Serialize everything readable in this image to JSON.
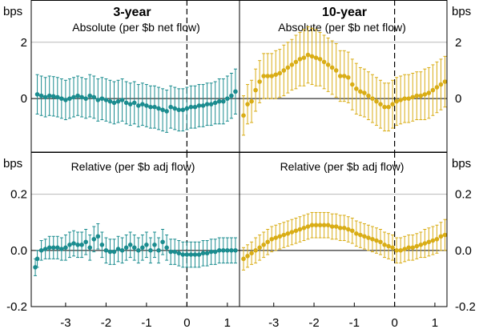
{
  "colors": {
    "teal": "#1a8c8f",
    "gold": "#d9ad16",
    "grid": "#b8b8b8",
    "axis": "#000000"
  },
  "chart_data": [
    {
      "type": "scatter",
      "panel": "top-left",
      "title": "3-year",
      "subtitle": "Absolute (per $b net flow)",
      "ylabel": "bps",
      "ylim": [
        -1.9,
        3.5
      ],
      "yticks": [
        "2",
        "0"
      ],
      "xlim": [
        -3.85,
        1.3
      ],
      "grid": "horizontal",
      "event_line": 0,
      "series": [
        {
          "color": "teal",
          "x": [
            -3.7,
            -3.6,
            -3.5,
            -3.4,
            -3.3,
            -3.2,
            -3.1,
            -3.0,
            -2.9,
            -2.8,
            -2.7,
            -2.6,
            -2.5,
            -2.4,
            -2.3,
            -2.2,
            -2.1,
            -2.0,
            -1.9,
            -1.8,
            -1.7,
            -1.6,
            -1.5,
            -1.4,
            -1.3,
            -1.2,
            -1.1,
            -1.0,
            -0.9,
            -0.8,
            -0.7,
            -0.6,
            -0.5,
            -0.4,
            -0.3,
            -0.2,
            -0.1,
            0.0,
            0.1,
            0.2,
            0.3,
            0.4,
            0.5,
            0.6,
            0.7,
            0.8,
            0.9,
            1.0,
            1.1,
            1.2
          ],
          "y": [
            0.15,
            0.1,
            0.05,
            0.1,
            0.08,
            0.05,
            0.0,
            -0.05,
            0.0,
            0.05,
            0.1,
            0.05,
            0.0,
            0.1,
            0.05,
            -0.05,
            0.0,
            -0.05,
            -0.1,
            -0.15,
            -0.1,
            -0.05,
            -0.15,
            -0.2,
            -0.15,
            -0.25,
            -0.2,
            -0.25,
            -0.3,
            -0.3,
            -0.35,
            -0.4,
            -0.45,
            -0.3,
            -0.35,
            -0.4,
            -0.4,
            -0.35,
            -0.3,
            -0.3,
            -0.25,
            -0.25,
            -0.2,
            -0.2,
            -0.15,
            -0.1,
            -0.1,
            0.0,
            0.1,
            0.25
          ],
          "err": [
            0.7,
            0.7,
            0.7,
            0.7,
            0.7,
            0.7,
            0.7,
            0.7,
            0.7,
            0.7,
            0.7,
            0.7,
            0.7,
            0.75,
            0.75,
            0.75,
            0.75,
            0.75,
            0.75,
            0.75,
            0.75,
            0.75,
            0.75,
            0.75,
            0.75,
            0.75,
            0.75,
            0.75,
            0.75,
            0.75,
            0.75,
            0.75,
            0.75,
            0.75,
            0.75,
            0.75,
            0.75,
            0.75,
            0.75,
            0.75,
            0.75,
            0.75,
            0.75,
            0.75,
            0.75,
            0.8,
            0.8,
            0.8,
            0.8,
            0.8
          ]
        }
      ]
    },
    {
      "type": "scatter",
      "panel": "top-right",
      "title": "10-year",
      "subtitle": "Absolute (per $b net flow)",
      "ylabel": "bps",
      "ylim": [
        -1.9,
        3.5
      ],
      "yticks": [
        "2",
        "0"
      ],
      "xlim": [
        -3.85,
        1.3
      ],
      "grid": "horizontal",
      "event_line": 0,
      "series": [
        {
          "color": "gold",
          "x": [
            -3.75,
            -3.65,
            -3.55,
            -3.45,
            -3.35,
            -3.25,
            -3.15,
            -3.05,
            -2.95,
            -2.85,
            -2.75,
            -2.65,
            -2.55,
            -2.45,
            -2.35,
            -2.25,
            -2.15,
            -2.05,
            -1.95,
            -1.85,
            -1.75,
            -1.65,
            -1.55,
            -1.45,
            -1.35,
            -1.25,
            -1.15,
            -1.05,
            -0.95,
            -0.85,
            -0.75,
            -0.65,
            -0.55,
            -0.45,
            -0.35,
            -0.25,
            -0.15,
            -0.05,
            0.05,
            0.15,
            0.25,
            0.35,
            0.45,
            0.55,
            0.65,
            0.75,
            0.85,
            0.95,
            1.05,
            1.15,
            1.25
          ],
          "y": [
            -0.6,
            -0.2,
            -0.1,
            0.3,
            0.6,
            0.8,
            0.8,
            0.8,
            0.85,
            0.9,
            1.0,
            1.1,
            1.2,
            1.3,
            1.4,
            1.45,
            1.55,
            1.5,
            1.45,
            1.4,
            1.3,
            1.2,
            1.1,
            1.0,
            0.8,
            0.8,
            0.75,
            0.5,
            0.35,
            0.25,
            0.2,
            0.1,
            0.0,
            -0.1,
            -0.2,
            -0.3,
            -0.3,
            -0.2,
            -0.1,
            -0.05,
            0.0,
            0.0,
            0.05,
            0.1,
            0.1,
            0.15,
            0.2,
            0.3,
            0.4,
            0.5,
            0.6
          ],
          "err": [
            0.7,
            0.7,
            0.75,
            0.75,
            0.75,
            0.8,
            0.8,
            0.8,
            0.85,
            0.85,
            0.9,
            0.9,
            0.9,
            0.95,
            0.95,
            1.0,
            1.0,
            1.0,
            1.0,
            0.95,
            0.95,
            0.95,
            0.95,
            0.95,
            0.9,
            0.9,
            0.9,
            0.9,
            0.9,
            0.85,
            0.85,
            0.85,
            0.85,
            0.85,
            0.85,
            0.85,
            0.85,
            0.85,
            0.85,
            0.85,
            0.85,
            0.85,
            0.85,
            0.85,
            0.85,
            0.9,
            0.9,
            0.9,
            0.9,
            0.9,
            0.9
          ]
        }
      ]
    },
    {
      "type": "scatter",
      "panel": "bottom-left",
      "title": "",
      "subtitle": "Relative (per $b adj flow)",
      "ylabel": "bps",
      "ylim": [
        -0.2,
        0.35
      ],
      "yticks": [
        "0.2",
        "0.0",
        "-0.2"
      ],
      "xlim": [
        -3.85,
        1.3
      ],
      "xticks": [
        "-3",
        "-2",
        "-1",
        "0",
        "1"
      ],
      "grid": "horizontal",
      "event_line": 0,
      "series": [
        {
          "color": "teal",
          "x": [
            -3.75,
            -3.7,
            -3.6,
            -3.5,
            -3.4,
            -3.3,
            -3.2,
            -3.1,
            -3.0,
            -2.9,
            -2.8,
            -2.7,
            -2.6,
            -2.5,
            -2.4,
            -2.3,
            -2.2,
            -2.1,
            -2.0,
            -1.9,
            -1.8,
            -1.7,
            -1.6,
            -1.5,
            -1.4,
            -1.3,
            -1.2,
            -1.1,
            -1.0,
            -0.9,
            -0.8,
            -0.7,
            -0.6,
            -0.5,
            -0.4,
            -0.3,
            -0.2,
            -0.1,
            0.0,
            0.1,
            0.2,
            0.3,
            0.4,
            0.5,
            0.6,
            0.7,
            0.8,
            0.9,
            1.0,
            1.1,
            1.2
          ],
          "y": [
            -0.06,
            -0.03,
            0.0,
            0.005,
            0.01,
            0.01,
            0.01,
            0.005,
            0.01,
            0.02,
            0.025,
            0.02,
            0.02,
            0.03,
            0.01,
            0.04,
            0.05,
            0.02,
            0.0,
            -0.005,
            -0.005,
            0.005,
            0.0,
            0.01,
            0.02,
            0.01,
            0.0,
            0.01,
            0.02,
            0.0,
            0.02,
            0.0,
            0.03,
            0.01,
            -0.005,
            -0.005,
            -0.01,
            -0.015,
            -0.015,
            -0.015,
            -0.015,
            -0.015,
            -0.01,
            -0.01,
            -0.005,
            -0.005,
            0.0,
            0.0,
            0.0,
            0.0,
            0.0
          ],
          "err": [
            0.03,
            0.03,
            0.035,
            0.035,
            0.04,
            0.04,
            0.04,
            0.04,
            0.045,
            0.045,
            0.045,
            0.045,
            0.045,
            0.045,
            0.045,
            0.045,
            0.045,
            0.045,
            0.045,
            0.045,
            0.045,
            0.045,
            0.045,
            0.045,
            0.045,
            0.045,
            0.045,
            0.045,
            0.045,
            0.045,
            0.045,
            0.045,
            0.045,
            0.045,
            0.045,
            0.045,
            0.045,
            0.045,
            0.045,
            0.045,
            0.045,
            0.045,
            0.045,
            0.045,
            0.045,
            0.045,
            0.045,
            0.045,
            0.045,
            0.045,
            0.045
          ]
        }
      ]
    },
    {
      "type": "scatter",
      "panel": "bottom-right",
      "title": "",
      "subtitle": "Relative (per $b adj flow)",
      "ylabel": "bps",
      "ylim": [
        -0.2,
        0.35
      ],
      "yticks": [
        "0.2",
        "0.0",
        "-0.2"
      ],
      "xlim": [
        -3.85,
        1.3
      ],
      "xticks": [
        "-3",
        "-2",
        "-1",
        "0",
        "1"
      ],
      "grid": "horizontal",
      "event_line": 0,
      "series": [
        {
          "color": "gold",
          "x": [
            -3.75,
            -3.65,
            -3.55,
            -3.45,
            -3.35,
            -3.25,
            -3.15,
            -3.05,
            -2.95,
            -2.85,
            -2.75,
            -2.65,
            -2.55,
            -2.45,
            -2.35,
            -2.25,
            -2.15,
            -2.05,
            -1.95,
            -1.85,
            -1.75,
            -1.65,
            -1.55,
            -1.45,
            -1.35,
            -1.25,
            -1.15,
            -1.05,
            -0.95,
            -0.85,
            -0.75,
            -0.65,
            -0.55,
            -0.45,
            -0.35,
            -0.25,
            -0.15,
            -0.05,
            0.05,
            0.15,
            0.25,
            0.35,
            0.45,
            0.55,
            0.65,
            0.75,
            0.85,
            0.95,
            1.05,
            1.15,
            1.25
          ],
          "y": [
            -0.03,
            -0.02,
            -0.01,
            0.0,
            0.01,
            0.02,
            0.03,
            0.04,
            0.045,
            0.05,
            0.055,
            0.06,
            0.065,
            0.07,
            0.075,
            0.08,
            0.085,
            0.09,
            0.09,
            0.09,
            0.09,
            0.09,
            0.085,
            0.085,
            0.08,
            0.08,
            0.075,
            0.07,
            0.06,
            0.055,
            0.05,
            0.045,
            0.04,
            0.035,
            0.03,
            0.02,
            0.015,
            0.01,
            0.0,
            0.0,
            0.005,
            0.01,
            0.01,
            0.015,
            0.02,
            0.025,
            0.03,
            0.035,
            0.04,
            0.05,
            0.055
          ],
          "err": [
            0.04,
            0.04,
            0.04,
            0.045,
            0.045,
            0.045,
            0.045,
            0.045,
            0.045,
            0.045,
            0.045,
            0.045,
            0.045,
            0.045,
            0.045,
            0.045,
            0.045,
            0.045,
            0.045,
            0.045,
            0.045,
            0.045,
            0.045,
            0.045,
            0.045,
            0.045,
            0.045,
            0.045,
            0.045,
            0.045,
            0.045,
            0.045,
            0.045,
            0.045,
            0.045,
            0.045,
            0.045,
            0.045,
            0.045,
            0.045,
            0.045,
            0.045,
            0.045,
            0.045,
            0.045,
            0.05,
            0.05,
            0.05,
            0.05,
            0.05,
            0.055
          ]
        }
      ]
    }
  ]
}
